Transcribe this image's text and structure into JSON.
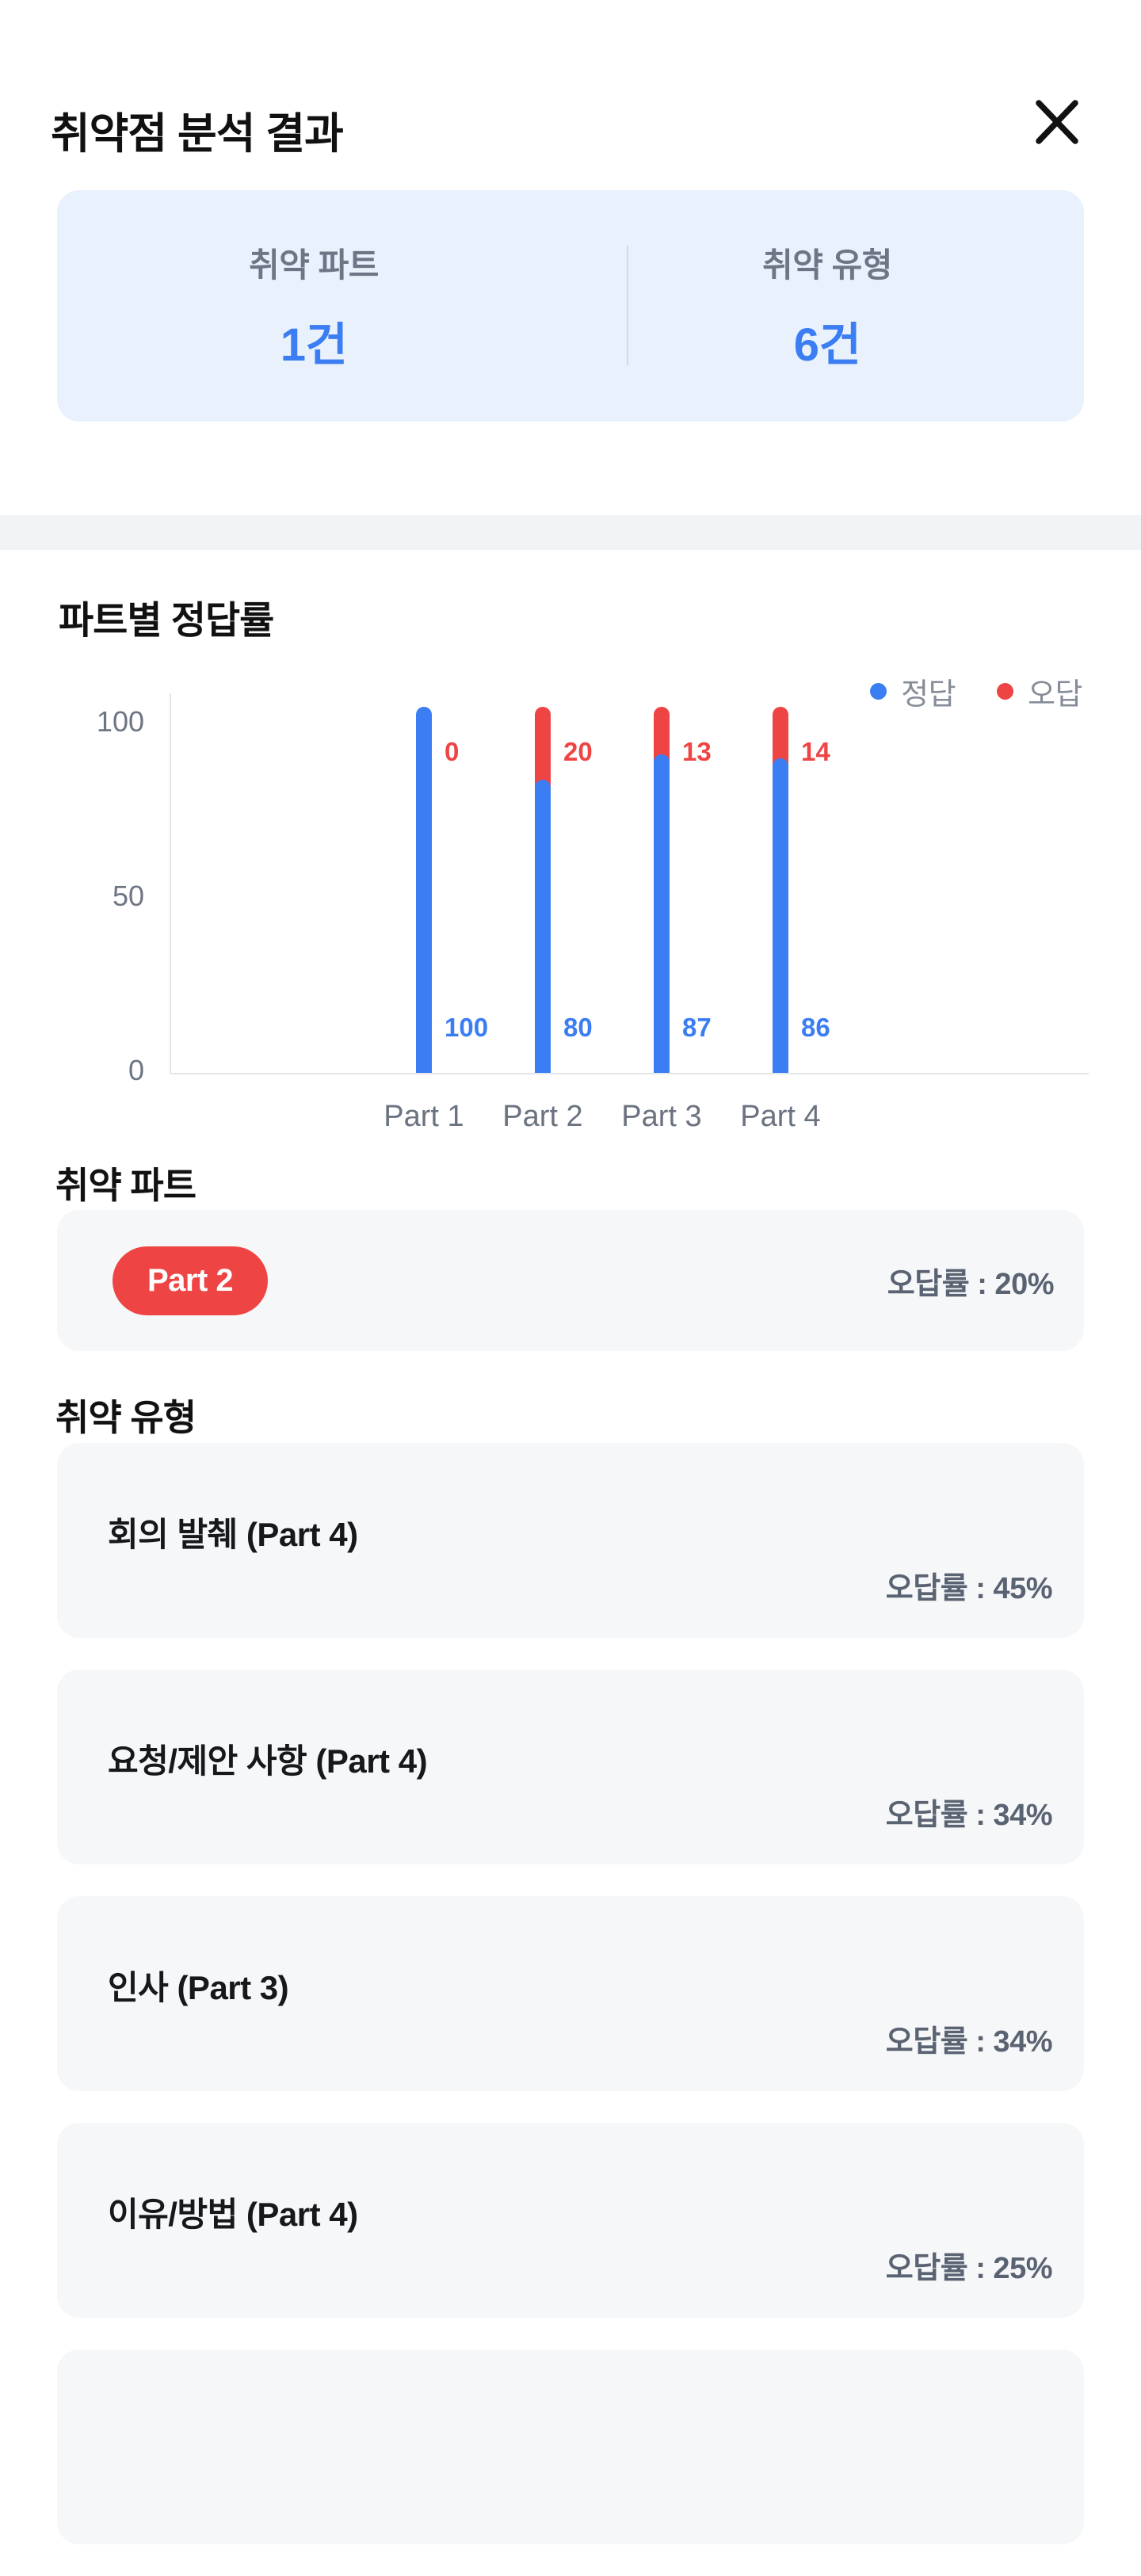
{
  "header": {
    "title": "취약점 분석 결과"
  },
  "summary": {
    "items": [
      {
        "label": "취약 파트",
        "value": "1건"
      },
      {
        "label": "취약 유형",
        "value": "6건"
      }
    ]
  },
  "chart_section": {
    "title": "파트별 정답률",
    "legend": [
      {
        "label": "정답",
        "color": "#3b7df2"
      },
      {
        "label": "오답",
        "color": "#ef4444"
      }
    ]
  },
  "chart_data": {
    "type": "bar",
    "stacked": true,
    "title": "파트별 정답률",
    "categories": [
      "Part 1",
      "Part 2",
      "Part 3",
      "Part 4"
    ],
    "series": [
      {
        "name": "정답",
        "color": "#3b7df2",
        "values": [
          100,
          80,
          87,
          86
        ]
      },
      {
        "name": "오답",
        "color": "#ef4444",
        "values": [
          0,
          20,
          13,
          14
        ]
      }
    ],
    "yticks": [
      0,
      50,
      100
    ],
    "ylim": [
      0,
      105
    ],
    "grid": false,
    "legend_position": "top-right",
    "xlabel": "",
    "ylabel": ""
  },
  "weak_part": {
    "heading": "취약 파트",
    "badge": "Part 2",
    "rate_label": "오답률 : 20%"
  },
  "weak_types": {
    "heading": "취약 유형",
    "items": [
      {
        "title": "회의 발췌 (Part 4)",
        "rate_label": "오답률 : 45%"
      },
      {
        "title": "요청/제안 사항 (Part 4)",
        "rate_label": "오답률 : 34%"
      },
      {
        "title": "인사 (Part 3)",
        "rate_label": "오답률 : 34%"
      },
      {
        "title": "이유/방법 (Part 4)",
        "rate_label": "오답률 : 25%"
      }
    ],
    "partial_fifth_card_visible": true
  },
  "colors": {
    "accent_blue": "#3b7df2",
    "accent_red": "#ef4444",
    "summary_card_bg": "#e9f1fd",
    "card_bg": "#f6f7f8",
    "strip_bg": "#f2f3f5",
    "axis_line": "#e3e6ea",
    "muted_text": "#6e7684"
  }
}
